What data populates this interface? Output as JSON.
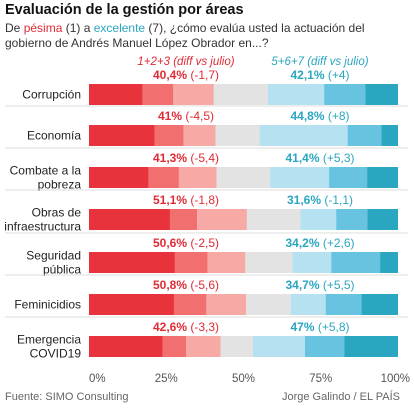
{
  "title": "Evaluación de la gestión por áreas",
  "subtitle": {
    "part1": "De ",
    "low_word": "pésima",
    "part2": " (1) a ",
    "high_word": "excelente",
    "part3": " (7), ¿cómo evalúa usted la actuación del gobierno de Andrés Manuel López Obrador en...?"
  },
  "footer": {
    "source": "Fuente: SIMO Consulting",
    "credit": "Jorge Galindo / EL PAÍS"
  },
  "chart_data": {
    "type": "bar",
    "stacked": true,
    "orientation": "horizontal",
    "categories": [
      [
        "Corrupción"
      ],
      [
        "Economía"
      ],
      [
        "Combate a la",
        "pobreza"
      ],
      [
        "Obras de",
        "infraestructura"
      ],
      [
        "Seguridad",
        "pública"
      ],
      [
        "Feminicidios"
      ],
      [
        "Emergencia",
        "COVID19"
      ]
    ],
    "low_header": "1+2+3",
    "high_header": "5+6+7",
    "header_note": "(diff vs julio)",
    "low_summary": [
      {
        "value": "40,4%",
        "diff": "(-1,7)"
      },
      {
        "value": "41%",
        "diff": "(-4,5)"
      },
      {
        "value": "41,3%",
        "diff": "(-5,4)"
      },
      {
        "value": "51,1%",
        "diff": "(-1,8)"
      },
      {
        "value": "50,6%",
        "diff": "(-2,5)"
      },
      {
        "value": "50,8%",
        "diff": "(-5,6)"
      },
      {
        "value": "42,6%",
        "diff": "(-3,3)"
      }
    ],
    "high_summary": [
      {
        "value": "42,1%",
        "diff": "(+4)"
      },
      {
        "value": "44,8%",
        "diff": "(+8)"
      },
      {
        "value": "41,4%",
        "diff": "(+5,3)"
      },
      {
        "value": "31,6%",
        "diff": "(-1,1)"
      },
      {
        "value": "34,2%",
        "diff": "(+2,6)"
      },
      {
        "value": "34,7%",
        "diff": "(+5,5)"
      },
      {
        "value": "47%",
        "diff": "(+5,8)"
      }
    ],
    "series": [
      {
        "values": [
          17.4,
          21.3,
          19.3,
          26.2,
          27.8,
          27.5,
          23.8
        ],
        "color": "#e8333d"
      },
      {
        "values": [
          9.9,
          9.3,
          9.8,
          8.8,
          10.6,
          10.5,
          7.6
        ],
        "color": "#f16f6f"
      },
      {
        "values": [
          13.1,
          10.4,
          12.2,
          16.1,
          12.2,
          12.8,
          11.2
        ],
        "color": "#f7a9a5"
      },
      {
        "values": [
          17.5,
          14.2,
          17.3,
          17.3,
          15.2,
          14.5,
          10.4
        ],
        "color": "#e3e3e3"
      },
      {
        "values": [
          18.2,
          28.5,
          19.1,
          11.6,
          12.6,
          11.3,
          16.9
        ],
        "color": "#b5e1f1"
      },
      {
        "values": [
          13.3,
          10.9,
          12.3,
          10.1,
          15.8,
          11.6,
          12.7
        ],
        "color": "#67c3df"
      },
      {
        "values": [
          10.6,
          5.4,
          10.0,
          9.9,
          5.8,
          11.8,
          17.4
        ],
        "color": "#2aa6c0"
      }
    ],
    "xlim": [
      0,
      100
    ],
    "x_ticks": [
      "0%",
      "25%",
      "50%",
      "75%",
      "100%"
    ],
    "colors": {
      "low": "#e02b35",
      "high": "#2aa6c0"
    }
  }
}
